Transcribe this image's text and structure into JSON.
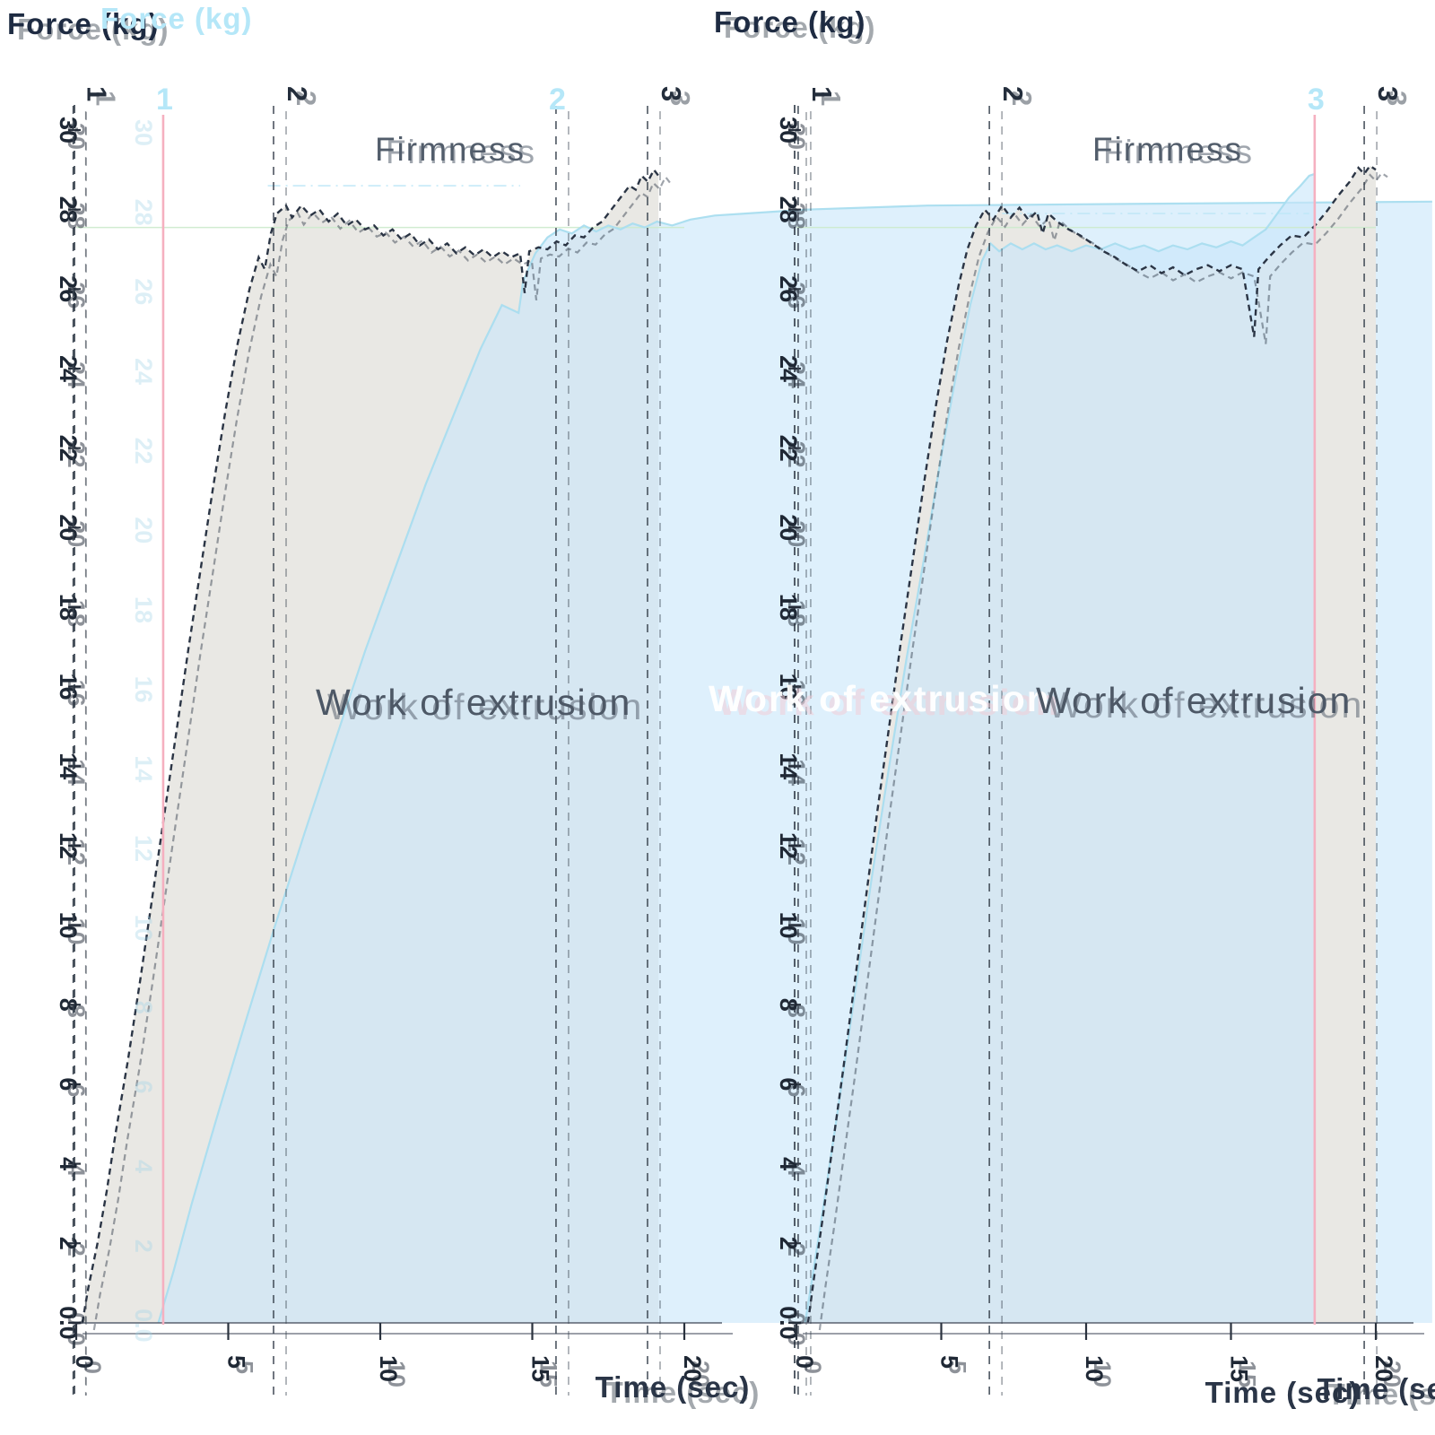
{
  "labels": {
    "force_axis": "Force (kg)",
    "time_axis": "Time (sec)",
    "firmness": "Firmness",
    "work_of_extrusion": "Work of extrusion"
  },
  "colors": {
    "dark_series": "#2b3545",
    "overlay_series": "#a9ddef",
    "overlay_text": "#b5e7f8",
    "pink_marker": "#f5b0c0",
    "gray_fill": "#e9e8e4",
    "overlay_fill": "rgba(201,231,250,0.62)",
    "green_cursor": "#cdebcd",
    "cyan_cursor": "#bfe7f7",
    "axis": "#5a6270",
    "tick_text": "#1f2835"
  },
  "chart_data": [
    {
      "id": "left-graph",
      "type": "area",
      "title": "Firmness",
      "area_annotation": "Work of extrusion",
      "xlabel": "Time (sec)",
      "ylabel": "Force (kg)",
      "xlim": [
        0,
        20
      ],
      "ylim": [
        0,
        30
      ],
      "x_ticks": [
        "0",
        "5",
        "10",
        "15",
        "20"
      ],
      "y_tick_labels": [
        "30",
        "28",
        "26",
        "24",
        "22",
        "20",
        "18",
        "16",
        "14",
        "12",
        "10",
        "8",
        "6",
        "4",
        "2",
        "0.0"
      ],
      "anchors": [
        {
          "label": "1",
          "t": -0.1,
          "series": "main",
          "line": "dashed"
        },
        {
          "label": "1",
          "t": 2.86,
          "series": "overlay",
          "line": "pink"
        },
        {
          "label": "2",
          "t": 6.49,
          "series": "main",
          "line": "dashed"
        },
        {
          "label": "2",
          "t": 15.78,
          "series": "overlay",
          "line": "dashed"
        },
        {
          "label": "3",
          "t": 18.79,
          "series": "main",
          "line": "dashed"
        }
      ],
      "cursor_lines": [
        {
          "F": 27.55,
          "style": "solid",
          "color": "#cdebcd",
          "t0": 0,
          "t1": 20
        },
        {
          "F": 28.6,
          "style": "dashdot",
          "color": "#bfe7f7",
          "t0": 6.3,
          "t1": 14.6
        }
      ],
      "series": [
        {
          "name": "test-curve",
          "role": "main",
          "line_style": "dashed",
          "color": "#2b3545",
          "fill": "#e9e8e4",
          "points": [
            [
              0.2,
              0
            ],
            [
              0.4,
              0.9
            ],
            [
              0.7,
              2.0
            ],
            [
              1.0,
              3.3
            ],
            [
              1.3,
              4.8
            ],
            [
              1.7,
              6.6
            ],
            [
              2.1,
              8.6
            ],
            [
              2.5,
              10.7
            ],
            [
              2.9,
              12.8
            ],
            [
              3.3,
              14.9
            ],
            [
              3.7,
              17.0
            ],
            [
              4.1,
              19.0
            ],
            [
              4.5,
              21.0
            ],
            [
              4.9,
              22.9
            ],
            [
              5.3,
              24.6
            ],
            [
              5.7,
              26.0
            ],
            [
              6.0,
              26.8
            ],
            [
              6.2,
              26.5
            ],
            [
              6.4,
              27.4
            ],
            [
              6.6,
              27.9
            ],
            [
              6.9,
              28.1
            ],
            [
              7.1,
              27.8
            ],
            [
              7.4,
              28.1
            ],
            [
              7.7,
              27.85
            ],
            [
              8.0,
              28.0
            ],
            [
              8.3,
              27.7
            ],
            [
              8.6,
              27.9
            ],
            [
              8.9,
              27.6
            ],
            [
              9.2,
              27.75
            ],
            [
              9.5,
              27.5
            ],
            [
              9.8,
              27.6
            ],
            [
              10.1,
              27.35
            ],
            [
              10.4,
              27.5
            ],
            [
              10.7,
              27.25
            ],
            [
              11.0,
              27.4
            ],
            [
              11.3,
              27.1
            ],
            [
              11.6,
              27.25
            ],
            [
              11.9,
              27.0
            ],
            [
              12.2,
              27.15
            ],
            [
              12.5,
              26.9
            ],
            [
              12.8,
              27.05
            ],
            [
              13.1,
              26.85
            ],
            [
              13.4,
              27.0
            ],
            [
              13.7,
              26.8
            ],
            [
              14.0,
              26.95
            ],
            [
              14.3,
              26.8
            ],
            [
              14.6,
              26.9
            ],
            [
              14.75,
              25.9
            ],
            [
              14.9,
              26.95
            ],
            [
              15.2,
              27.05
            ],
            [
              15.5,
              27.0
            ],
            [
              15.8,
              27.2
            ],
            [
              16.1,
              27.1
            ],
            [
              16.4,
              27.35
            ],
            [
              16.7,
              27.3
            ],
            [
              17.0,
              27.55
            ],
            [
              17.3,
              27.7
            ],
            [
              17.6,
              28.0
            ],
            [
              17.9,
              28.3
            ],
            [
              18.2,
              28.6
            ],
            [
              18.4,
              28.5
            ],
            [
              18.6,
              28.85
            ],
            [
              18.8,
              28.7
            ],
            [
              19.0,
              29.0
            ],
            [
              19.15,
              28.85
            ]
          ]
        },
        {
          "name": "overlay-curve",
          "role": "overlay",
          "line_style": "solid",
          "color": "#a9ddef",
          "fill": "rgba(201,231,250,0.62)",
          "points": [
            [
              2.7,
              0
            ],
            [
              3.2,
              1.3
            ],
            [
              3.8,
              3.0
            ],
            [
              4.6,
              5.1
            ],
            [
              5.5,
              7.4
            ],
            [
              6.5,
              9.9
            ],
            [
              7.5,
              12.3
            ],
            [
              8.5,
              14.6
            ],
            [
              9.5,
              16.9
            ],
            [
              10.5,
              19.0
            ],
            [
              11.5,
              21.1
            ],
            [
              12.5,
              23.0
            ],
            [
              13.3,
              24.5
            ],
            [
              14.0,
              25.6
            ],
            [
              14.55,
              25.4
            ],
            [
              14.7,
              26.2
            ],
            [
              15.1,
              26.9
            ],
            [
              15.5,
              27.3
            ],
            [
              15.9,
              27.5
            ],
            [
              16.3,
              27.4
            ],
            [
              16.7,
              27.6
            ],
            [
              17.1,
              27.45
            ],
            [
              17.5,
              27.6
            ],
            [
              17.9,
              27.5
            ],
            [
              18.3,
              27.65
            ],
            [
              18.7,
              27.55
            ],
            [
              19.1,
              27.7
            ],
            [
              19.6,
              27.6
            ],
            [
              20.2,
              27.75
            ],
            [
              21.0,
              27.85
            ],
            [
              22.0,
              27.9
            ],
            [
              24.0,
              28.0
            ],
            [
              28.0,
              28.1
            ],
            [
              36.0,
              28.15
            ],
            [
              44.6,
              28.2
            ]
          ]
        }
      ]
    },
    {
      "id": "right-graph",
      "type": "area",
      "title": "Firmness",
      "area_annotation": "Work of extrusion",
      "xlabel": "Time (sec)",
      "ylabel": "Force (kg)",
      "xlim": [
        0,
        20
      ],
      "ylim": [
        0,
        30
      ],
      "x_ticks": [
        "0",
        "5",
        "10",
        "15",
        "20"
      ],
      "y_tick_labels": [
        "30",
        "28",
        "26",
        "24",
        "22",
        "20",
        "18",
        "16",
        "14",
        "12",
        "10",
        "8",
        "6",
        "4",
        "2",
        "0.0"
      ],
      "anchors": [
        {
          "label": "1",
          "t": 0.06,
          "series": "main",
          "line": "dashed"
        },
        {
          "label": "2",
          "t": 6.66,
          "series": "main",
          "line": "dashed"
        },
        {
          "label": "3",
          "t": 17.89,
          "series": "overlay",
          "line": "pink"
        },
        {
          "label": "3",
          "t": 19.6,
          "series": "main",
          "line": "dashed"
        }
      ],
      "cursor_lines": [
        {
          "F": 27.55,
          "style": "solid",
          "color": "#cdebcd",
          "t0": 0,
          "t1": 20
        },
        {
          "F": 27.9,
          "style": "dashdot",
          "color": "#bfe7f7",
          "t0": 7.1,
          "t1": 17.7
        }
      ],
      "series": [
        {
          "name": "test-curve",
          "role": "main",
          "line_style": "dashed",
          "color": "#2b3545",
          "fill": "#e9e8e4",
          "points": [
            [
              0.4,
              0
            ],
            [
              0.6,
              1.1
            ],
            [
              0.9,
              2.6
            ],
            [
              1.2,
              4.2
            ],
            [
              1.6,
              6.3
            ],
            [
              2.0,
              8.5
            ],
            [
              2.4,
              10.7
            ],
            [
              2.8,
              12.9
            ],
            [
              3.2,
              15.0
            ],
            [
              3.6,
              17.1
            ],
            [
              4.0,
              19.1
            ],
            [
              4.4,
              21.1
            ],
            [
              4.8,
              23.0
            ],
            [
              5.2,
              24.7
            ],
            [
              5.6,
              26.1
            ],
            [
              5.9,
              27.0
            ],
            [
              6.2,
              27.6
            ],
            [
              6.5,
              28.0
            ],
            [
              6.8,
              27.75
            ],
            [
              7.1,
              28.1
            ],
            [
              7.4,
              27.8
            ],
            [
              7.7,
              28.05
            ],
            [
              8.0,
              27.75
            ],
            [
              8.3,
              27.95
            ],
            [
              8.5,
              27.4
            ],
            [
              8.7,
              27.9
            ],
            [
              9.0,
              27.7
            ],
            [
              9.4,
              27.5
            ],
            [
              9.8,
              27.35
            ],
            [
              10.2,
              27.15
            ],
            [
              10.6,
              26.95
            ],
            [
              11.0,
              26.8
            ],
            [
              11.4,
              26.6
            ],
            [
              11.8,
              26.45
            ],
            [
              12.2,
              26.6
            ],
            [
              12.6,
              26.4
            ],
            [
              13.0,
              26.55
            ],
            [
              13.4,
              26.35
            ],
            [
              13.8,
              26.5
            ],
            [
              14.2,
              26.6
            ],
            [
              14.6,
              26.45
            ],
            [
              15.0,
              26.6
            ],
            [
              15.4,
              26.5
            ],
            [
              15.8,
              24.8
            ],
            [
              15.95,
              26.5
            ],
            [
              16.3,
              26.8
            ],
            [
              16.7,
              27.1
            ],
            [
              17.1,
              27.35
            ],
            [
              17.5,
              27.3
            ],
            [
              17.9,
              27.6
            ],
            [
              18.3,
              27.95
            ],
            [
              18.7,
              28.35
            ],
            [
              19.1,
              28.7
            ],
            [
              19.4,
              29.05
            ],
            [
              19.6,
              28.9
            ],
            [
              19.8,
              29.1
            ],
            [
              20.0,
              29.0
            ]
          ]
        },
        {
          "name": "overlay-curve",
          "role": "overlay",
          "line_style": "solid",
          "color": "#a9ddef",
          "fill": "rgba(201,231,250,0.62)",
          "points": [
            [
              0.3,
              0
            ],
            [
              0.8,
              2.3
            ],
            [
              1.4,
              5.2
            ],
            [
              2.0,
              8.2
            ],
            [
              2.6,
              11.2
            ],
            [
              3.2,
              14.0
            ],
            [
              3.8,
              16.7
            ],
            [
              4.4,
              19.2
            ],
            [
              5.0,
              21.8
            ],
            [
              5.5,
              23.8
            ],
            [
              6.0,
              25.6
            ],
            [
              6.4,
              26.7
            ],
            [
              6.7,
              27.15
            ],
            [
              7.0,
              26.95
            ],
            [
              7.4,
              27.15
            ],
            [
              7.8,
              27.0
            ],
            [
              8.2,
              27.15
            ],
            [
              8.6,
              27.0
            ],
            [
              9.0,
              27.1
            ],
            [
              9.5,
              26.95
            ],
            [
              10.0,
              27.1
            ],
            [
              10.5,
              27.0
            ],
            [
              11.0,
              27.15
            ],
            [
              11.5,
              27.0
            ],
            [
              12.0,
              27.1
            ],
            [
              12.5,
              26.95
            ],
            [
              13.0,
              27.1
            ],
            [
              13.5,
              27.0
            ],
            [
              14.0,
              27.15
            ],
            [
              14.5,
              27.05
            ],
            [
              15.0,
              27.2
            ],
            [
              15.4,
              27.1
            ],
            [
              15.8,
              27.3
            ],
            [
              16.2,
              27.5
            ],
            [
              16.6,
              27.9
            ],
            [
              17.0,
              28.3
            ],
            [
              17.4,
              28.6
            ],
            [
              17.7,
              28.85
            ],
            [
              17.9,
              28.9
            ]
          ]
        }
      ]
    }
  ]
}
